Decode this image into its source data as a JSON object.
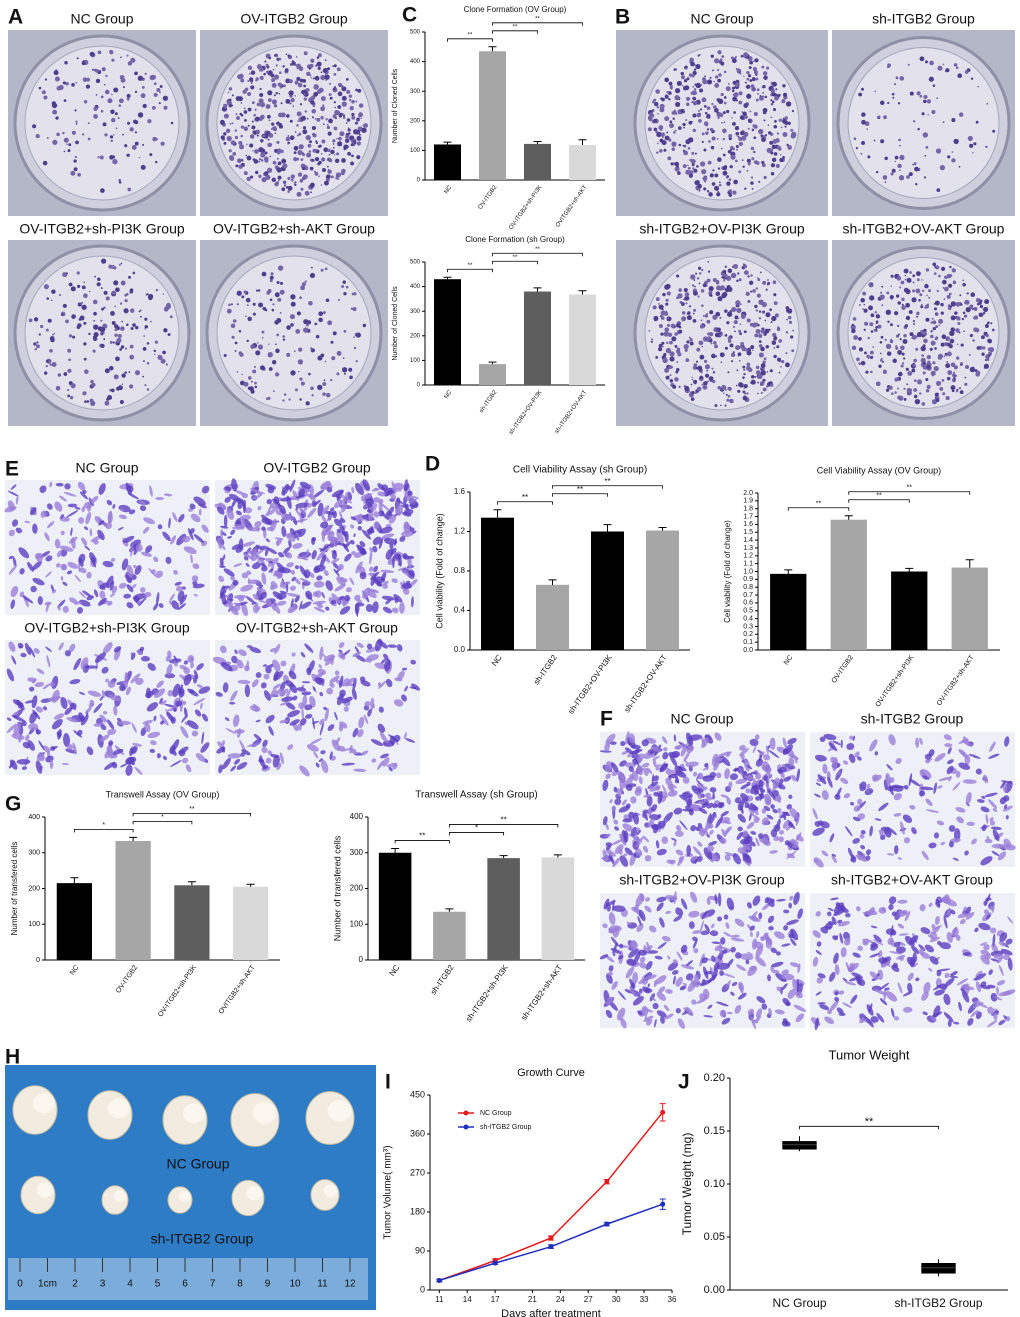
{
  "figure": {
    "panels": [
      {
        "letter": "A",
        "captions": [
          "NC Group",
          "OV-ITGB2 Group",
          "OV-ITGB2+sh-PI3K Group",
          "OV-ITGB2+sh-AKT Group"
        ]
      },
      {
        "letter": "B",
        "captions": [
          "NC Group",
          "sh-ITGB2 Group",
          "sh-ITGB2+OV-PI3K Group",
          "sh-ITGB2+OV-AKT Group"
        ]
      },
      {
        "letter": "C"
      },
      {
        "letter": "D"
      },
      {
        "letter": "E",
        "captions": [
          "NC Group",
          "OV-ITGB2 Group",
          "OV-ITGB2+sh-PI3K Group",
          "OV-ITGB2+sh-AKT Group"
        ]
      },
      {
        "letter": "F",
        "captions": [
          "NC Group",
          "sh-ITGB2 Group",
          "sh-ITGB2+OV-PI3K Group",
          "sh-ITGB2+OV-AKT Group"
        ]
      },
      {
        "letter": "G"
      },
      {
        "letter": "H",
        "captions": [
          "NC Group",
          "sh-ITGB2 Group"
        ],
        "ruler": [
          "0",
          "1cm",
          "2",
          "3",
          "4",
          "5",
          "6",
          "7",
          "8",
          "9",
          "10",
          "11",
          "12"
        ]
      },
      {
        "letter": "I"
      },
      {
        "letter": "J"
      }
    ]
  },
  "chart_data": [
    {
      "type": "bar",
      "title": "Clone Formation (OV Group)",
      "y_label": "Number of Cloned Cells",
      "categories": [
        "NC",
        "OV-ITGB2",
        "OV-ITGB2+sh-PI3K",
        "OVITGB2+sh-AKT"
      ],
      "values": [
        120,
        435,
        122,
        118
      ],
      "errors": [
        8,
        15,
        8,
        18
      ],
      "colors": [
        "#000000",
        "#a6a6a6",
        "#5e5e5e",
        "#d9d9d9"
      ],
      "ylim": [
        0,
        500
      ],
      "yticks": [
        0,
        100,
        200,
        300,
        400,
        500
      ],
      "significance": [
        "**",
        "**",
        "**"
      ]
    },
    {
      "type": "bar",
      "title": "Clone Formation (sh Group)",
      "y_label": "Number of Cloned Cells",
      "categories": [
        "NC",
        "sh-ITGB2",
        "sh-ITGB2+OV-PI3K",
        "sh-ITGB2+OV-AKT"
      ],
      "values": [
        430,
        85,
        380,
        368
      ],
      "errors": [
        8,
        8,
        15,
        15
      ],
      "colors": [
        "#000000",
        "#a6a6a6",
        "#5e5e5e",
        "#d9d9d9"
      ],
      "ylim": [
        0,
        500
      ],
      "yticks": [
        0,
        100,
        200,
        300,
        400,
        500
      ],
      "significance": [
        "**",
        "**",
        "**"
      ]
    },
    {
      "type": "bar",
      "title": "Cell Viability Assay (sh Group)",
      "y_label": "Cell viability (Fold of change)",
      "categories": [
        "NC",
        "sh-ITGB2",
        "sh-ITGB2+OV-PI3K",
        "sh-ITGB2+OV-AKT"
      ],
      "values": [
        1.34,
        0.66,
        1.2,
        1.21
      ],
      "errors": [
        0.08,
        0.05,
        0.07,
        0.03
      ],
      "colors": [
        "#000000",
        "#a6a6a6",
        "#000000",
        "#a6a6a6"
      ],
      "ylim": [
        0,
        1.6
      ],
      "yticks": [
        {
          "value": 0,
          "label": "0.0"
        },
        0.4,
        0.8,
        1.2,
        1.6
      ],
      "significance": [
        "**",
        "**",
        "**"
      ]
    },
    {
      "type": "bar",
      "title": "Cell Viability Assay (OV Group)",
      "y_label": "Cell viability (Fold of change)",
      "categories": [
        "NC",
        "OV-ITGB2",
        "OV-ITGB2+sh-PI3K",
        "OV-ITGB2+sh-AKT"
      ],
      "values": [
        0.97,
        1.66,
        1.0,
        1.05
      ],
      "errors": [
        0.05,
        0.05,
        0.04,
        0.1
      ],
      "colors": [
        "#000000",
        "#a6a6a6",
        "#000000",
        "#a6a6a6"
      ],
      "ylim": [
        0,
        2.0
      ],
      "yticks": [
        {
          "value": 0,
          "label": "0.0"
        },
        0.1,
        0.2,
        0.3,
        0.4,
        0.5,
        0.6,
        0.7,
        0.8,
        0.9,
        {
          "value": 1,
          "label": "1.0"
        },
        1.1,
        1.2,
        1.3,
        1.4,
        1.5,
        1.6,
        1.7,
        1.8,
        1.9,
        {
          "value": 2,
          "label": "2.0"
        }
      ],
      "significance": [
        "**",
        "**",
        "**"
      ]
    },
    {
      "type": "bar",
      "title": "Transwell Assay (OV Group)",
      "y_label": "Number of  transfered cells",
      "categories": [
        "NC",
        "OV-ITGB2",
        "OV-ITGB2+sh-PI3K",
        "OVITGB2+sh-AKT"
      ],
      "values": [
        215,
        333,
        209,
        205
      ],
      "errors": [
        15,
        10,
        10,
        7
      ],
      "colors": [
        "#000000",
        "#a6a6a6",
        "#5e5e5e",
        "#d9d9d9"
      ],
      "ylim": [
        0,
        400
      ],
      "yticks": [
        0,
        100,
        200,
        300,
        400
      ],
      "significance": [
        "*",
        "*",
        "**"
      ]
    },
    {
      "type": "bar",
      "title": "Transwell Assay (sh Group)",
      "y_label": "Number of  transfered cells",
      "categories": [
        "NC",
        "sh-ITGB2",
        "sh-ITGB2+sh-PI3K",
        "sh-ITGB2+sh-AKT"
      ],
      "values": [
        300,
        135,
        285,
        287
      ],
      "errors": [
        12,
        8,
        7,
        7
      ],
      "colors": [
        "#000000",
        "#a6a6a6",
        "#5e5e5e",
        "#d9d9d9"
      ],
      "ylim": [
        0,
        400
      ],
      "yticks": [
        0,
        100,
        200,
        300,
        400
      ],
      "significance": [
        "**",
        "*",
        "**"
      ]
    },
    {
      "type": "line",
      "title": "Growth Curve",
      "x_label": "Days after treatment",
      "y_label": "Tumor Volume( mm³)",
      "x": [
        11,
        17,
        23,
        29,
        35
      ],
      "series": [
        {
          "name": "NC Group",
          "color": "#e31a1c",
          "values": [
            22,
            68,
            120,
            250,
            410
          ],
          "errors": [
            3,
            4,
            5,
            5,
            20
          ]
        },
        {
          "name": "sh-ITGB2 Group",
          "color": "#1f2fbf",
          "values": [
            22,
            62,
            100,
            152,
            198
          ],
          "errors": [
            3,
            3,
            4,
            4,
            12
          ]
        }
      ],
      "xlim": [
        10,
        36
      ],
      "xticks": [
        11,
        14,
        17,
        21,
        24,
        27,
        30,
        33,
        36
      ],
      "ylim": [
        0,
        450
      ],
      "yticks": [
        0,
        90,
        180,
        270,
        360,
        450
      ],
      "legend": "upper-left"
    },
    {
      "type": "box",
      "title": "Tumor Weight",
      "y_label": "Tumor Weight (mg)",
      "categories": [
        "NC Group",
        "sh-ITGB2 Group"
      ],
      "low": [
        0.131,
        0.013
      ],
      "q1": [
        0.133,
        0.016
      ],
      "median": [
        0.137,
        0.021
      ],
      "q3": [
        0.14,
        0.025
      ],
      "high": [
        0.145,
        0.029
      ],
      "ylim": [
        0,
        0.2
      ],
      "yticks": [
        {
          "value": 0,
          "label": "0.00"
        },
        {
          "value": 0.05,
          "label": "0.05"
        },
        {
          "value": 0.1,
          "label": "0.10"
        },
        {
          "value": 0.15,
          "label": "0.15"
        },
        {
          "value": 0.2,
          "label": "0.20"
        }
      ],
      "significance": [
        "**"
      ]
    }
  ]
}
